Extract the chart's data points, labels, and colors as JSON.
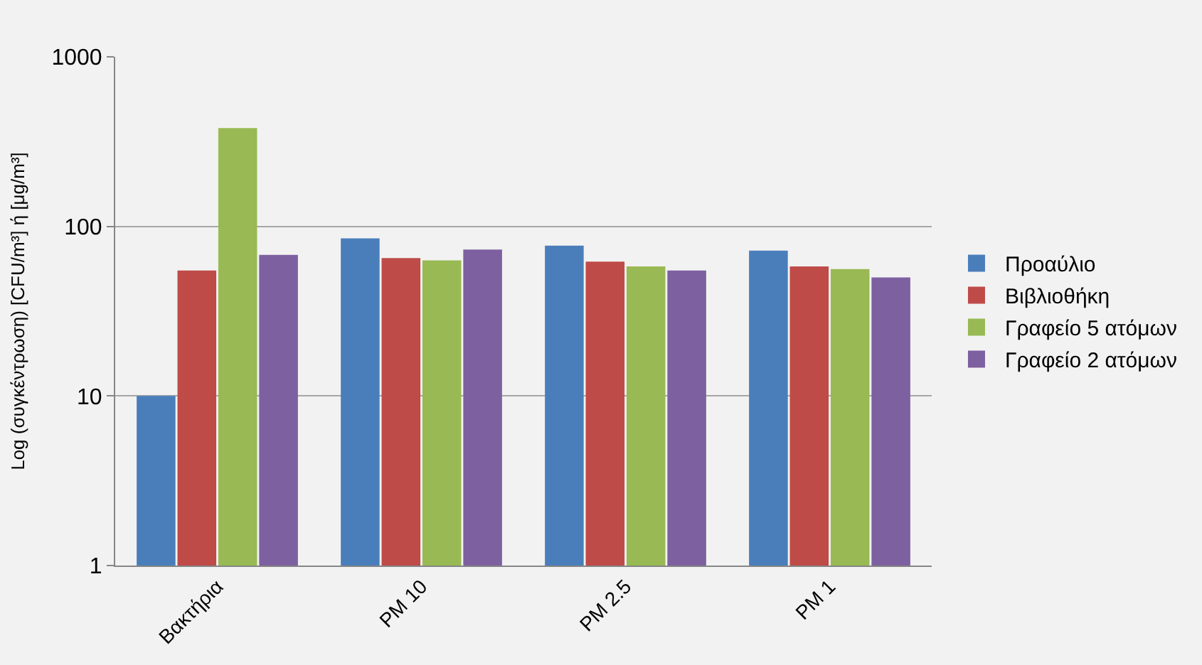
{
  "chart_data": {
    "type": "bar",
    "ylabel": "Log (συγκέντρωση) [CFU/m³] ή [μg/m³]",
    "categories": [
      "Βακτήρια",
      "PM 10",
      "PM 2.5",
      "PM 1"
    ],
    "series": [
      {
        "name": "Προαύλιο",
        "color": "#4a7ebb",
        "values": [
          10,
          85,
          77,
          72
        ]
      },
      {
        "name": "Βιβλιοθήκη",
        "color": "#be4b48",
        "values": [
          55,
          65,
          62,
          58
        ]
      },
      {
        "name": "Γραφείο 5 ατόμων",
        "color": "#98b954",
        "values": [
          380,
          63,
          58,
          56
        ]
      },
      {
        "name": "Γραφείο 2 ατόμων",
        "color": "#7d60a0",
        "values": [
          68,
          73,
          55,
          50
        ]
      }
    ],
    "log": true,
    "ylim": [
      1,
      1000
    ],
    "yticks": [
      1,
      10,
      100,
      1000
    ],
    "grid": "y",
    "legend": "right"
  }
}
